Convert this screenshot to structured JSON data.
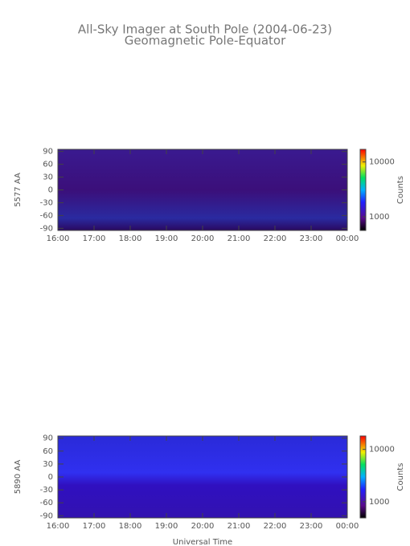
{
  "title": "All-Sky Imager at South Pole (2004-06-23)",
  "subtitle": "Geomagnetic Pole-Equator",
  "chart_data": [
    {
      "type": "heatmap",
      "ylabel": "5577 AA",
      "xlim": [
        16,
        24
      ],
      "xticks": [
        {
          "value": 16,
          "label": "16:00"
        },
        {
          "value": 17,
          "label": "17:00"
        },
        {
          "value": 18,
          "label": "18:00"
        },
        {
          "value": 19,
          "label": "19:00"
        },
        {
          "value": 20,
          "label": "20:00"
        },
        {
          "value": 21,
          "label": "21:00"
        },
        {
          "value": 22,
          "label": "22:00"
        },
        {
          "value": 23,
          "label": "23:00"
        },
        {
          "value": 24,
          "label": "00:00"
        }
      ],
      "ylim": [
        -95,
        95
      ],
      "yticks": [
        90,
        60,
        30,
        0,
        -30,
        -60,
        -90
      ],
      "colorbar": {
        "label": "Counts",
        "log": true,
        "clim": [
          560,
          17000
        ],
        "ticks": [
          10000,
          1000
        ]
      }
    },
    {
      "type": "heatmap",
      "ylabel": "5890 AA",
      "xlabel": "Universal Time",
      "xlim": [
        16,
        24
      ],
      "xticks": [
        {
          "value": 16,
          "label": "16:00"
        },
        {
          "value": 17,
          "label": "17:00"
        },
        {
          "value": 18,
          "label": "18:00"
        },
        {
          "value": 19,
          "label": "19:00"
        },
        {
          "value": 20,
          "label": "20:00"
        },
        {
          "value": 21,
          "label": "21:00"
        },
        {
          "value": 22,
          "label": "22:00"
        },
        {
          "value": 23,
          "label": "23:00"
        },
        {
          "value": 24,
          "label": "00:00"
        }
      ],
      "ylim": [
        -95,
        95
      ],
      "yticks": [
        90,
        60,
        30,
        0,
        -30,
        -60,
        -90
      ],
      "colorbar": {
        "label": "Counts",
        "log": true,
        "clim": [
          490,
          18000
        ],
        "ticks": [
          10000,
          1000
        ]
      }
    }
  ]
}
